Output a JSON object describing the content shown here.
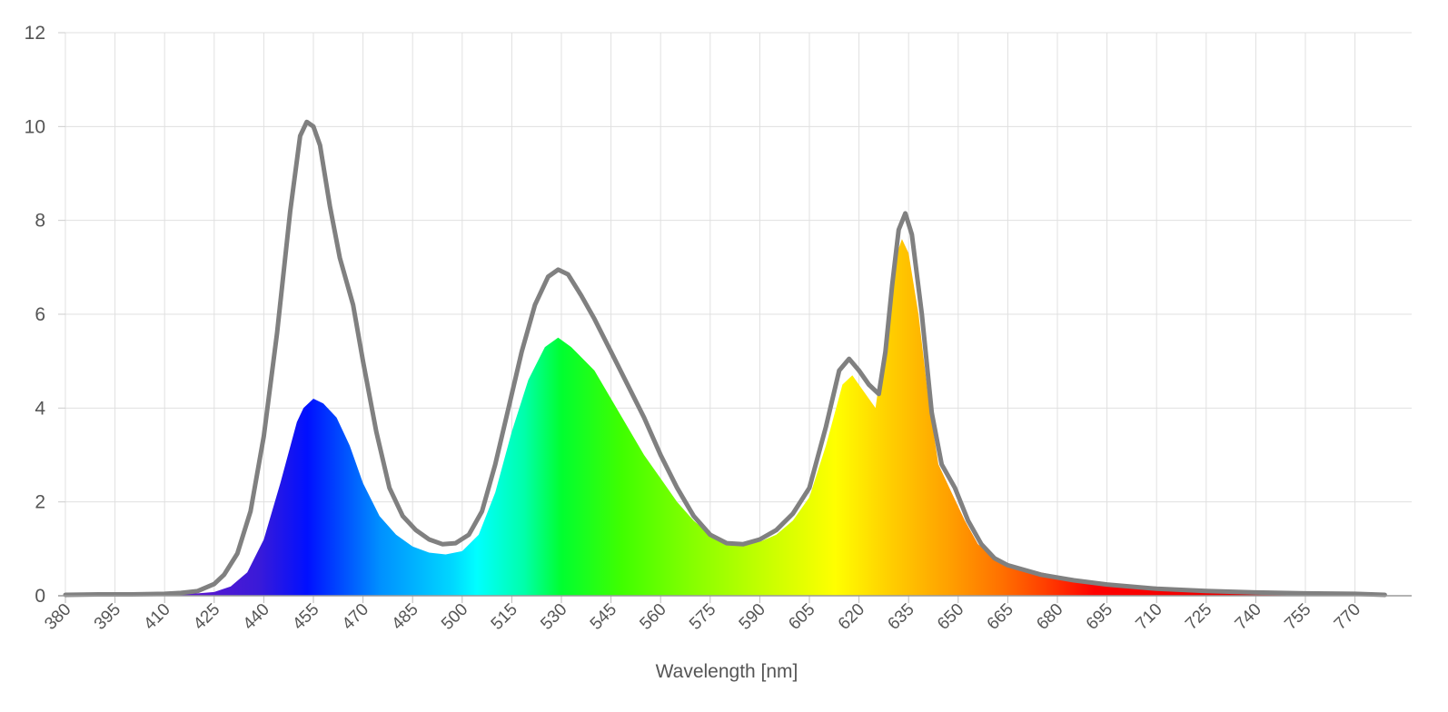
{
  "chart_data": {
    "type": "area",
    "title": "",
    "xlabel": "Wavelength [nm]",
    "ylabel": "",
    "xlim": [
      380,
      779
    ],
    "ylim": [
      0,
      12
    ],
    "grid": true,
    "legend": "none",
    "x_ticks": [
      380,
      395,
      410,
      425,
      440,
      455,
      470,
      485,
      500,
      515,
      530,
      545,
      560,
      575,
      590,
      605,
      620,
      635,
      650,
      665,
      680,
      695,
      710,
      725,
      740,
      755,
      770
    ],
    "y_ticks": [
      0,
      2,
      4,
      6,
      8,
      10,
      12
    ],
    "colors": {
      "outline": "#808080",
      "grid": "#e0e0e0",
      "axis_text": "#555555"
    },
    "series": [
      {
        "kind": "filled-spectrum",
        "points": [
          [
            380,
            0.02
          ],
          [
            390,
            0.03
          ],
          [
            400,
            0.03
          ],
          [
            410,
            0.03
          ],
          [
            420,
            0.05
          ],
          [
            425,
            0.08
          ],
          [
            430,
            0.2
          ],
          [
            435,
            0.5
          ],
          [
            440,
            1.2
          ],
          [
            445,
            2.4
          ],
          [
            450,
            3.7
          ],
          [
            452,
            4.0
          ],
          [
            455,
            4.2
          ],
          [
            458,
            4.1
          ],
          [
            462,
            3.8
          ],
          [
            466,
            3.2
          ],
          [
            470,
            2.4
          ],
          [
            475,
            1.7
          ],
          [
            480,
            1.3
          ],
          [
            485,
            1.05
          ],
          [
            490,
            0.92
          ],
          [
            495,
            0.88
          ],
          [
            500,
            0.95
          ],
          [
            505,
            1.3
          ],
          [
            510,
            2.2
          ],
          [
            515,
            3.5
          ],
          [
            520,
            4.6
          ],
          [
            525,
            5.3
          ],
          [
            529,
            5.5
          ],
          [
            533,
            5.3
          ],
          [
            540,
            4.8
          ],
          [
            545,
            4.2
          ],
          [
            550,
            3.6
          ],
          [
            555,
            3.0
          ],
          [
            560,
            2.5
          ],
          [
            565,
            2.0
          ],
          [
            570,
            1.6
          ],
          [
            575,
            1.3
          ],
          [
            580,
            1.1
          ],
          [
            585,
            1.08
          ],
          [
            590,
            1.15
          ],
          [
            595,
            1.3
          ],
          [
            600,
            1.6
          ],
          [
            605,
            2.1
          ],
          [
            610,
            3.2
          ],
          [
            615,
            4.5
          ],
          [
            618,
            4.7
          ],
          [
            621,
            4.4
          ],
          [
            625,
            4.0
          ],
          [
            628,
            5.5
          ],
          [
            631,
            7.2
          ],
          [
            633,
            7.6
          ],
          [
            635,
            7.3
          ],
          [
            638,
            6.0
          ],
          [
            641,
            4.2
          ],
          [
            644,
            2.8
          ],
          [
            648,
            2.2
          ],
          [
            652,
            1.6
          ],
          [
            656,
            1.1
          ],
          [
            660,
            0.85
          ],
          [
            665,
            0.68
          ],
          [
            675,
            0.5
          ],
          [
            685,
            0.35
          ],
          [
            695,
            0.25
          ],
          [
            710,
            0.16
          ],
          [
            725,
            0.1
          ],
          [
            740,
            0.07
          ],
          [
            755,
            0.06
          ],
          [
            770,
            0.05
          ],
          [
            779,
            0.03
          ]
        ]
      },
      {
        "kind": "outline",
        "points": [
          [
            380,
            0.02
          ],
          [
            390,
            0.03
          ],
          [
            400,
            0.03
          ],
          [
            410,
            0.04
          ],
          [
            415,
            0.06
          ],
          [
            420,
            0.1
          ],
          [
            425,
            0.25
          ],
          [
            428,
            0.45
          ],
          [
            432,
            0.9
          ],
          [
            436,
            1.8
          ],
          [
            440,
            3.4
          ],
          [
            444,
            5.6
          ],
          [
            448,
            8.2
          ],
          [
            451,
            9.8
          ],
          [
            453,
            10.1
          ],
          [
            455,
            10.0
          ],
          [
            457,
            9.6
          ],
          [
            460,
            8.3
          ],
          [
            463,
            7.2
          ],
          [
            467,
            6.2
          ],
          [
            470,
            5.0
          ],
          [
            474,
            3.5
          ],
          [
            478,
            2.3
          ],
          [
            482,
            1.7
          ],
          [
            486,
            1.4
          ],
          [
            490,
            1.2
          ],
          [
            494,
            1.1
          ],
          [
            498,
            1.12
          ],
          [
            502,
            1.3
          ],
          [
            506,
            1.8
          ],
          [
            510,
            2.8
          ],
          [
            514,
            4.0
          ],
          [
            518,
            5.2
          ],
          [
            522,
            6.2
          ],
          [
            526,
            6.8
          ],
          [
            529,
            6.95
          ],
          [
            532,
            6.85
          ],
          [
            536,
            6.4
          ],
          [
            540,
            5.9
          ],
          [
            545,
            5.2
          ],
          [
            550,
            4.5
          ],
          [
            555,
            3.8
          ],
          [
            560,
            3.0
          ],
          [
            565,
            2.3
          ],
          [
            570,
            1.7
          ],
          [
            575,
            1.3
          ],
          [
            580,
            1.12
          ],
          [
            585,
            1.1
          ],
          [
            590,
            1.2
          ],
          [
            595,
            1.4
          ],
          [
            600,
            1.75
          ],
          [
            605,
            2.3
          ],
          [
            610,
            3.6
          ],
          [
            614,
            4.8
          ],
          [
            617,
            5.05
          ],
          [
            620,
            4.8
          ],
          [
            623,
            4.5
          ],
          [
            626,
            4.3
          ],
          [
            628,
            5.2
          ],
          [
            630,
            6.6
          ],
          [
            632,
            7.8
          ],
          [
            634,
            8.15
          ],
          [
            636,
            7.7
          ],
          [
            639,
            6.0
          ],
          [
            642,
            3.9
          ],
          [
            645,
            2.8
          ],
          [
            649,
            2.3
          ],
          [
            653,
            1.6
          ],
          [
            657,
            1.1
          ],
          [
            661,
            0.8
          ],
          [
            665,
            0.65
          ],
          [
            675,
            0.45
          ],
          [
            685,
            0.33
          ],
          [
            695,
            0.24
          ],
          [
            710,
            0.15
          ],
          [
            725,
            0.1
          ],
          [
            740,
            0.07
          ],
          [
            755,
            0.05
          ],
          [
            770,
            0.04
          ],
          [
            779,
            0.02
          ]
        ]
      }
    ]
  }
}
